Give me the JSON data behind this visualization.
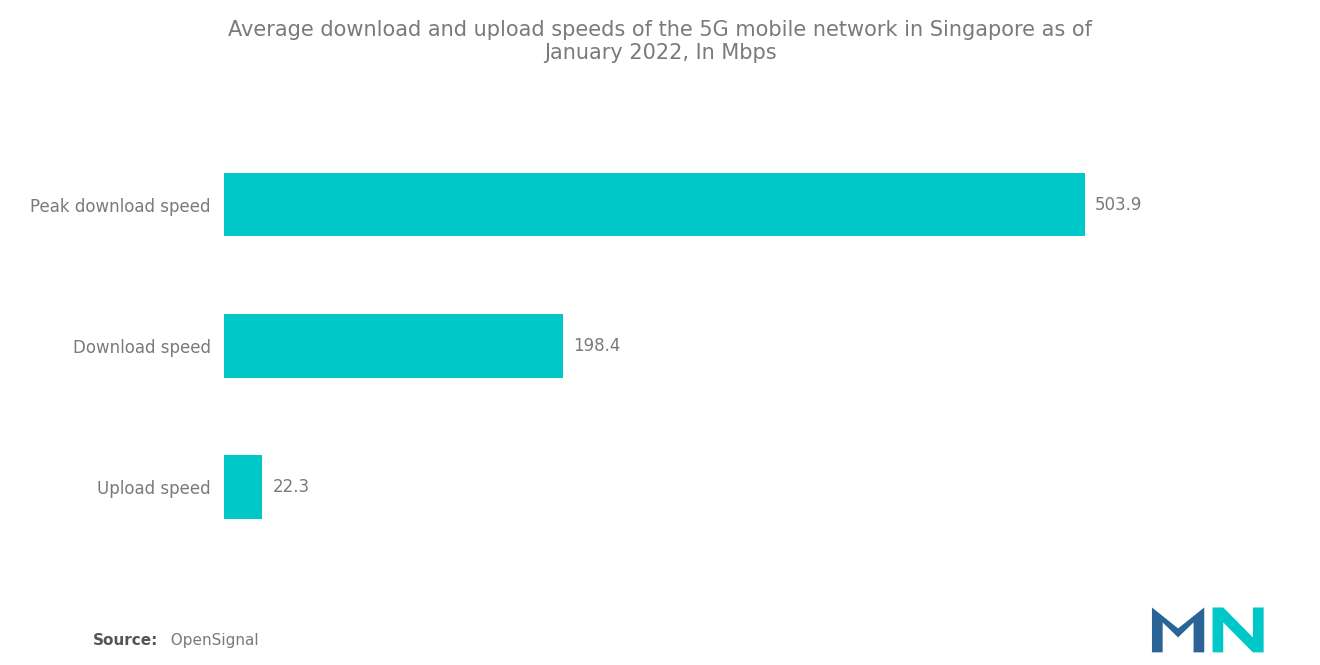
{
  "title": "Average download and upload speeds of the 5G mobile network in Singapore as of\nJanuary 2022, In Mbps",
  "categories": [
    "Upload speed",
    "Download speed",
    "Peak download speed"
  ],
  "values": [
    22.3,
    198.4,
    503.9
  ],
  "bar_color": "#00C8C8",
  "value_labels": [
    "22.3",
    "198.4",
    "503.9"
  ],
  "xlim": [
    0,
    580
  ],
  "source_bold": "Source:",
  "source_normal": "  OpenSignal",
  "title_fontsize": 15,
  "label_fontsize": 12,
  "value_fontsize": 12,
  "source_fontsize": 11,
  "background_color": "#ffffff",
  "bar_height": 0.45,
  "title_color": "#7a7a7a",
  "label_color": "#7a7a7a",
  "value_color": "#7a7a7a"
}
